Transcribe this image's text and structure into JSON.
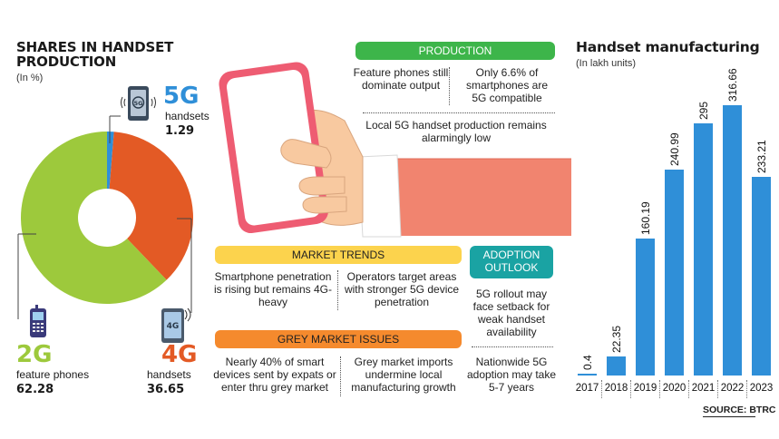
{
  "left": {
    "title_line1": "SHARES IN HANDSET",
    "title_line2": "PRODUCTION",
    "unit": "(In %)",
    "segments": [
      {
        "big": "5G",
        "label": "handsets",
        "value": "1.29",
        "pct": 1.29,
        "color": "#2f8fd8",
        "icon": "5g-phone-icon"
      },
      {
        "big": "4G",
        "label": "handsets",
        "value": "36.65",
        "pct": 36.65,
        "color": "#e35a25",
        "icon": "4g-phone-icon"
      },
      {
        "big": "2G",
        "label": "feature phones",
        "value": "62.28",
        "pct": 62.28,
        "color": "#9dc93c",
        "icon": "feature-phone-icon"
      }
    ]
  },
  "middle": {
    "production": {
      "heading": "PRODUCTION",
      "col1": "Feature phones still dominate output",
      "col2": "Only 6.6% of smartphones are 5G compatible",
      "bottom": "Local 5G handset production remains alarmingly low"
    },
    "market_trends": {
      "heading": "MARKET TRENDS",
      "col1": "Smartphone penetration is rising but remains 4G-heavy",
      "col2": "Operators target areas with stronger 5G device penetration"
    },
    "grey_market": {
      "heading": "GREY MARKET ISSUES",
      "col1": "Nearly 40% of smart devices sent by expats or enter thru grey market",
      "col2": "Grey market imports undermine local manufacturing growth"
    },
    "adoption": {
      "heading_line1": "ADOPTION",
      "heading_line2": "OUTLOOK",
      "item1": "5G rollout may face setback for weak handset availability",
      "item2": "Nationwide 5G adoption may take 5-7 years"
    },
    "colors": {
      "green": "#3db54a",
      "yellow": "#fcd34d",
      "orange": "#f58a2d",
      "teal": "#1aa3a3"
    }
  },
  "chart_data": {
    "type": "bar",
    "title": "Handset manufacturing",
    "ylabel": "(In lakh units)",
    "categories": [
      "2017",
      "2018",
      "2019",
      "2020",
      "2021",
      "2022",
      "2023"
    ],
    "values": [
      0.4,
      22.35,
      160.19,
      240.99,
      295,
      316.66,
      233.21
    ],
    "value_labels": [
      "0.4",
      "22.35",
      "160.19",
      "240.99",
      "295",
      "316.66",
      "233.21"
    ],
    "ylim": [
      0,
      340
    ],
    "grid": false,
    "color": "#2f8fd8",
    "source_prefix": "SOURCE: ",
    "source": "BTRC"
  }
}
